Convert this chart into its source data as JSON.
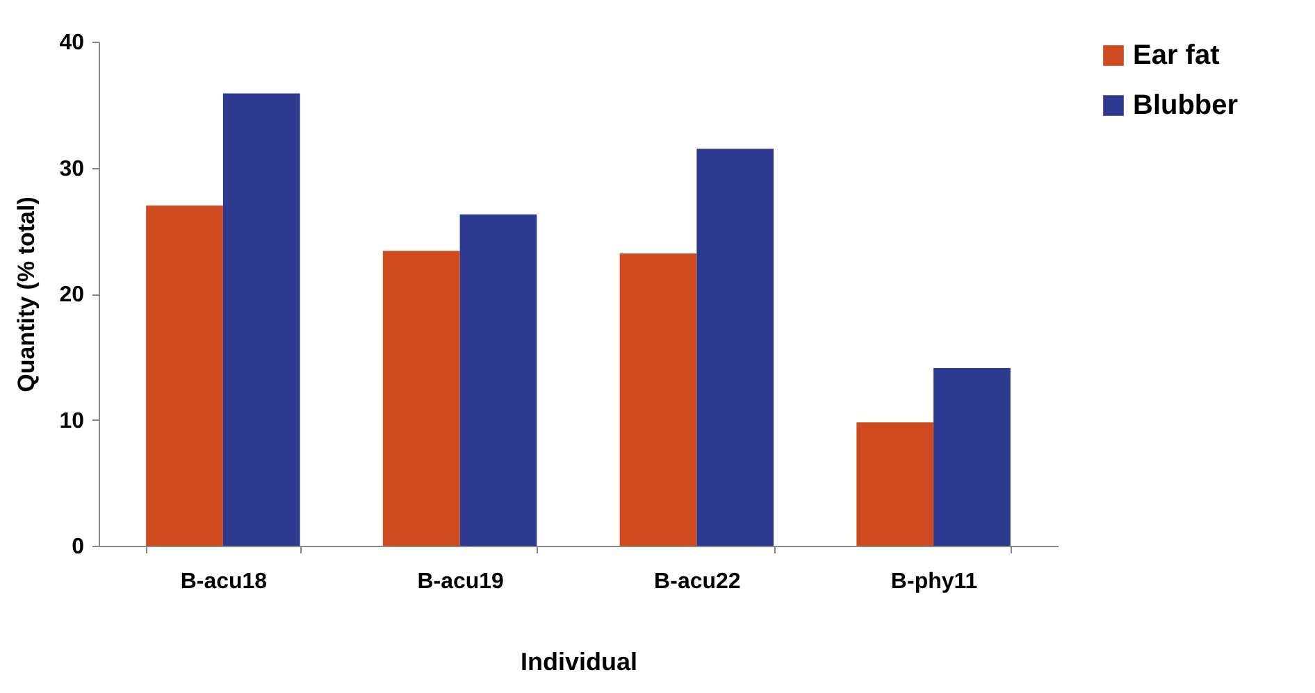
{
  "chart_data": {
    "type": "bar",
    "xlabel": "Individual",
    "ylabel": "Quantity (% total)",
    "categories": [
      "B-acu18",
      "B-acu19",
      "B-acu22",
      "B-phy11"
    ],
    "series": [
      {
        "name": "Ear fat",
        "color": "#d04a20",
        "values": [
          27,
          23.4,
          23.2,
          9.8
        ]
      },
      {
        "name": "Blubber",
        "color": "#2e3a8f",
        "values": [
          35.9,
          26.3,
          31.5,
          14.1
        ]
      }
    ],
    "ylim": [
      0,
      40
    ],
    "yticks": [
      0,
      10,
      20,
      30,
      40
    ],
    "grid": false,
    "legend": "top right"
  }
}
